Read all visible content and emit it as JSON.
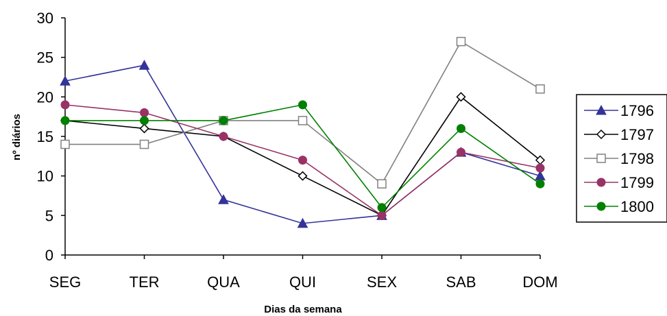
{
  "chart_data": {
    "type": "line",
    "categories": [
      "SEG",
      "TER",
      "QUA",
      "QUI",
      "SEX",
      "SAB",
      "DOM"
    ],
    "series": [
      {
        "name": "1796",
        "values": [
          22,
          24,
          7,
          4,
          5,
          13,
          10
        ],
        "color": "#333399",
        "marker": "triangle-filled"
      },
      {
        "name": "1797",
        "values": [
          17,
          16,
          15,
          10,
          5,
          20,
          12
        ],
        "color": "#000000",
        "marker": "diamond-open"
      },
      {
        "name": "1798",
        "values": [
          14,
          14,
          17,
          17,
          9,
          27,
          21
        ],
        "color": "#808080",
        "marker": "square-open"
      },
      {
        "name": "1799",
        "values": [
          19,
          18,
          15,
          12,
          5,
          13,
          11
        ],
        "color": "#993366",
        "marker": "circle-filled"
      },
      {
        "name": "1800",
        "values": [
          17,
          17,
          17,
          19,
          6,
          16,
          9
        ],
        "color": "#008000",
        "marker": "circle-filled"
      }
    ],
    "xlabel": "Dias da semana",
    "ylabel": "nº diários",
    "ylim": [
      0,
      30
    ],
    "yticks": [
      0,
      5,
      10,
      15,
      20,
      25,
      30
    ],
    "grid": false,
    "legend_position": "right"
  }
}
